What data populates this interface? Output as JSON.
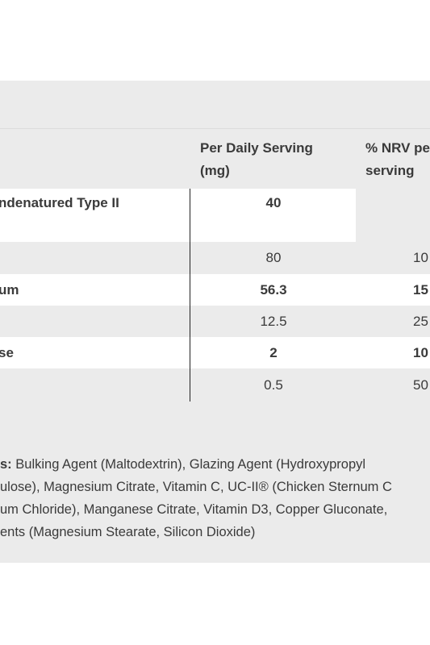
{
  "table": {
    "headers": {
      "per_serving_line1": "Per Daily Serving",
      "per_serving_line2": "(mg)",
      "nrv_line1": "% NRV pe",
      "nrv_line2": "serving"
    },
    "rows": [
      {
        "name": "ndenatured Type II",
        "name_line2": "",
        "value": "40",
        "nrv": ""
      },
      {
        "name": "",
        "value": "80",
        "nrv": "10"
      },
      {
        "name": "um",
        "value": "56.3",
        "nrv": "15"
      },
      {
        "name": "",
        "value": "12.5",
        "nrv": "25"
      },
      {
        "name": "se",
        "value": "2",
        "nrv": "10"
      },
      {
        "name": "",
        "value": "0.5",
        "nrv": "50"
      }
    ]
  },
  "ingredients": {
    "label": "s:",
    "line1": " Bulking Agent (Maltodextrin), Glazing Agent (Hydroxypropyl",
    "line2": "ulose), Magnesium Citrate, Vitamin C, UC-II® (Chicken Sternum C",
    "line3": "um Chloride), Manganese Citrate, Vitamin D3, Copper Gluconate,",
    "line4": "ents (Magnesium Stearate, Silicon Dioxide)"
  }
}
